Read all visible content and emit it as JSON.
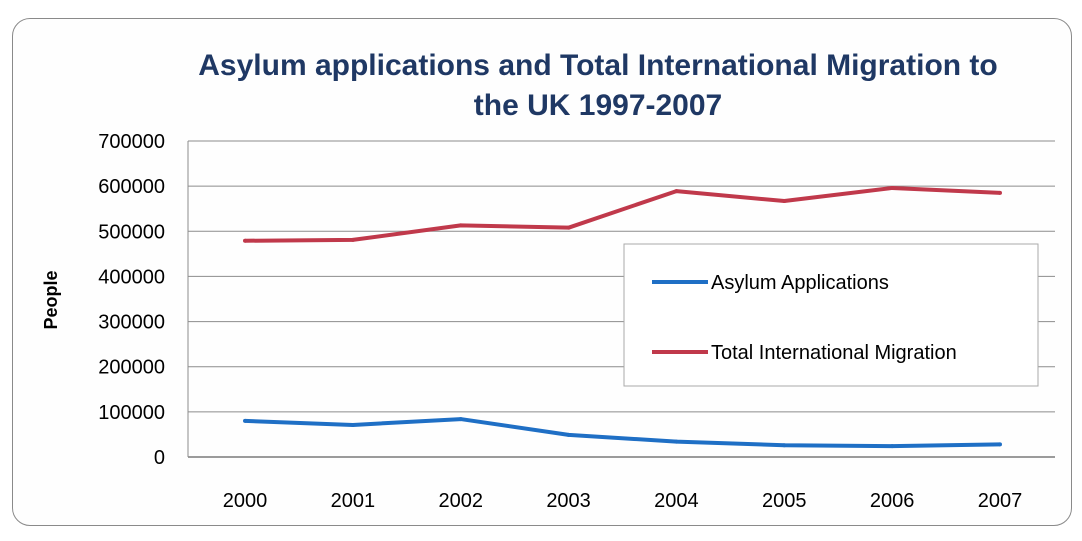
{
  "chart_data": {
    "type": "line",
    "title_lines": [
      "Asylum applications and Total International Migration to",
      "the UK 1997-2007"
    ],
    "xlabel": "",
    "ylabel": "People",
    "categories": [
      "2000",
      "2001",
      "2002",
      "2003",
      "2004",
      "2005",
      "2006",
      "2007"
    ],
    "yticks": [
      "700000",
      "600000",
      "500000",
      "400000",
      "300000",
      "200000",
      "100000",
      "0"
    ],
    "ylim": [
      0,
      700000
    ],
    "grid": true,
    "legend_position": "center-right",
    "series": [
      {
        "name": "Asylum Applications",
        "color": "#1f6fc5",
        "values": [
          80000,
          71000,
          84000,
          49000,
          34000,
          26000,
          24000,
          28000
        ]
      },
      {
        "name": "Total International Migration",
        "color": "#c0394b",
        "values": [
          479000,
          481000,
          513000,
          508000,
          589000,
          567000,
          596000,
          585000
        ]
      }
    ]
  }
}
